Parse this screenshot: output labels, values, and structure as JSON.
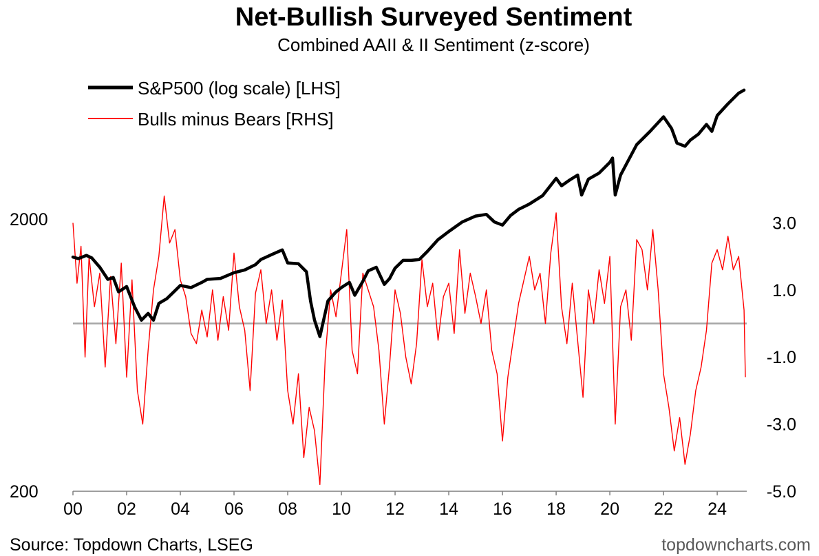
{
  "chart_data": {
    "type": "line",
    "title": "Net-Bullish Surveyed Sentiment",
    "subtitle": "Combined AAII & II Sentiment (z-score)",
    "x_tick_labels": [
      "00",
      "02",
      "04",
      "06",
      "08",
      "10",
      "12",
      "14",
      "16",
      "18",
      "20",
      "22",
      "24"
    ],
    "x_tick_years": [
      2000,
      2002,
      2004,
      2006,
      2008,
      2010,
      2012,
      2014,
      2016,
      2018,
      2020,
      2022,
      2024
    ],
    "xlim": [
      2000,
      2025.1
    ],
    "left_axis": {
      "scale": "log",
      "ylim": [
        200,
        8000
      ],
      "tick_labels": [
        "2000",
        "200"
      ],
      "tick_values": [
        2000,
        200
      ]
    },
    "right_axis": {
      "ylim": [
        -5.0,
        8.0
      ],
      "tick_labels": [
        "3.0",
        "1.0",
        "-1.0",
        "-3.0",
        "-5.0"
      ],
      "tick_values": [
        3,
        1,
        -1,
        -3,
        -5
      ]
    },
    "zero_line": {
      "value": 0,
      "color": "#a6a6a6"
    },
    "legend": {
      "placement": "top-left",
      "entries": [
        {
          "label": "S&P500 (log scale) [LHS]",
          "color": "#000000"
        },
        {
          "label": "Bulls minus Bears [RHS]",
          "color": "#ff0000"
        }
      ]
    },
    "series": [
      {
        "name": "S&P500 (log scale) [LHS]",
        "axis": "left",
        "color": "#000000",
        "x": [
          2000.0,
          2000.2,
          2000.5,
          2000.7,
          2001.0,
          2001.3,
          2001.5,
          2001.7,
          2002.0,
          2002.3,
          2002.55,
          2002.8,
          2003.0,
          2003.2,
          2003.5,
          2003.8,
          2004.0,
          2004.4,
          2004.8,
          2005.0,
          2005.5,
          2006.0,
          2006.4,
          2006.8,
          2007.0,
          2007.4,
          2007.8,
          2008.0,
          2008.4,
          2008.7,
          2008.85,
          2009.0,
          2009.2,
          2009.5,
          2009.8,
          2010.0,
          2010.3,
          2010.5,
          2010.8,
          2011.0,
          2011.3,
          2011.6,
          2011.8,
          2012.0,
          2012.3,
          2012.6,
          2012.9,
          2013.2,
          2013.6,
          2014.0,
          2014.5,
          2015.0,
          2015.4,
          2015.7,
          2016.0,
          2016.3,
          2016.6,
          2017.0,
          2017.5,
          2018.0,
          2018.2,
          2018.5,
          2018.8,
          2018.95,
          2019.2,
          2019.6,
          2020.0,
          2020.1,
          2020.2,
          2020.4,
          2020.7,
          2021.0,
          2021.5,
          2022.0,
          2022.3,
          2022.5,
          2022.8,
          2023.0,
          2023.3,
          2023.6,
          2023.8,
          2024.0,
          2024.4,
          2024.8,
          2025.0
        ],
        "values": [
          1450,
          1430,
          1470,
          1440,
          1330,
          1200,
          1220,
          1080,
          1130,
          950,
          850,
          900,
          850,
          980,
          1020,
          1090,
          1140,
          1120,
          1170,
          1200,
          1210,
          1270,
          1300,
          1360,
          1420,
          1480,
          1540,
          1380,
          1370,
          1280,
          1000,
          850,
          740,
          1000,
          1080,
          1120,
          1170,
          1050,
          1180,
          1290,
          1330,
          1150,
          1210,
          1320,
          1410,
          1410,
          1420,
          1520,
          1680,
          1800,
          1950,
          2050,
          2080,
          1950,
          1900,
          2060,
          2170,
          2270,
          2440,
          2820,
          2650,
          2780,
          2900,
          2450,
          2800,
          2950,
          3230,
          3350,
          2450,
          2900,
          3300,
          3750,
          4200,
          4750,
          4300,
          3800,
          3700,
          3900,
          4100,
          4450,
          4200,
          4800,
          5300,
          5800,
          5950
        ]
      },
      {
        "name": "Bulls minus Bears [RHS]",
        "axis": "right",
        "color": "#ff0000",
        "x": [
          2000.0,
          2000.15,
          2000.3,
          2000.45,
          2000.6,
          2000.8,
          2001.0,
          2001.2,
          2001.4,
          2001.6,
          2001.8,
          2002.0,
          2002.2,
          2002.4,
          2002.6,
          2002.8,
          2003.0,
          2003.2,
          2003.4,
          2003.6,
          2003.8,
          2004.0,
          2004.2,
          2004.4,
          2004.6,
          2004.8,
          2005.0,
          2005.2,
          2005.4,
          2005.6,
          2005.8,
          2006.0,
          2006.2,
          2006.4,
          2006.6,
          2006.8,
          2007.0,
          2007.2,
          2007.4,
          2007.6,
          2007.8,
          2008.0,
          2008.2,
          2008.4,
          2008.6,
          2008.8,
          2009.0,
          2009.2,
          2009.4,
          2009.6,
          2009.8,
          2010.0,
          2010.2,
          2010.4,
          2010.6,
          2010.8,
          2011.0,
          2011.2,
          2011.4,
          2011.6,
          2011.8,
          2012.0,
          2012.2,
          2012.4,
          2012.6,
          2012.8,
          2013.0,
          2013.2,
          2013.4,
          2013.6,
          2013.8,
          2014.0,
          2014.2,
          2014.4,
          2014.6,
          2014.8,
          2015.0,
          2015.2,
          2015.4,
          2015.6,
          2015.8,
          2016.0,
          2016.2,
          2016.4,
          2016.6,
          2016.8,
          2017.0,
          2017.2,
          2017.4,
          2017.6,
          2017.8,
          2018.0,
          2018.2,
          2018.4,
          2018.6,
          2018.8,
          2019.0,
          2019.2,
          2019.4,
          2019.6,
          2019.8,
          2020.0,
          2020.2,
          2020.4,
          2020.6,
          2020.8,
          2021.0,
          2021.2,
          2021.4,
          2021.6,
          2021.8,
          2022.0,
          2022.2,
          2022.4,
          2022.6,
          2022.8,
          2023.0,
          2023.2,
          2023.4,
          2023.6,
          2023.8,
          2024.0,
          2024.2,
          2024.4,
          2024.6,
          2024.8,
          2025.0,
          2025.05
        ],
        "values": [
          3.0,
          1.2,
          2.3,
          -1.0,
          2.0,
          0.5,
          1.5,
          -1.3,
          1.4,
          -0.6,
          1.8,
          -1.6,
          1.3,
          -2.0,
          -3.0,
          -0.8,
          1.0,
          2.0,
          3.8,
          2.4,
          2.8,
          1.3,
          0.8,
          -0.3,
          -0.6,
          0.4,
          -0.4,
          1.0,
          -0.5,
          0.8,
          -0.2,
          2.1,
          0.5,
          -0.2,
          -2.0,
          0.9,
          1.6,
          0.0,
          1.0,
          -0.5,
          0.7,
          -2.0,
          -3.0,
          -1.5,
          -4.0,
          -2.5,
          -3.2,
          -4.8,
          -1.0,
          1.0,
          0.2,
          1.5,
          2.8,
          -0.8,
          -1.5,
          1.5,
          1.0,
          0.5,
          -0.8,
          -3.0,
          -1.2,
          1.0,
          0.3,
          -1.0,
          -1.8,
          -0.6,
          1.9,
          0.5,
          1.2,
          -0.5,
          0.8,
          1.2,
          -0.3,
          2.2,
          0.3,
          1.5,
          0.8,
          0.0,
          1.0,
          -0.8,
          -1.5,
          -3.5,
          -1.6,
          -0.5,
          0.6,
          1.3,
          2.0,
          1.0,
          1.5,
          0.0,
          2.1,
          3.3,
          0.5,
          -0.6,
          1.2,
          -0.5,
          -2.2,
          1.0,
          0.0,
          1.6,
          0.6,
          2.0,
          -3.0,
          0.5,
          1.0,
          -0.5,
          2.5,
          2.2,
          1.0,
          2.8,
          1.0,
          -1.5,
          -2.5,
          -3.8,
          -2.8,
          -4.2,
          -3.3,
          -2.0,
          -1.3,
          -0.2,
          1.8,
          2.2,
          1.6,
          2.6,
          1.6,
          2.0,
          0.4,
          -1.6
        ]
      }
    ]
  },
  "source": "Source: Topdown Charts, LSEG",
  "watermark": "topdowncharts.com"
}
